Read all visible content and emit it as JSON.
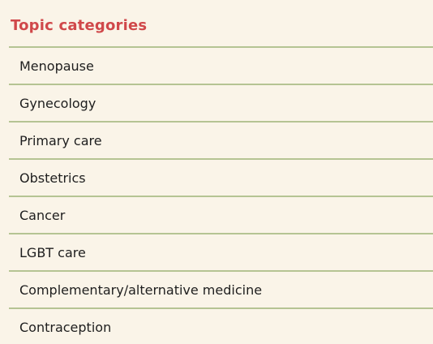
{
  "panel": {
    "title": "Topic categories"
  },
  "topics": [
    {
      "label": "Menopause"
    },
    {
      "label": "Gynecology"
    },
    {
      "label": "Primary care"
    },
    {
      "label": "Obstetrics"
    },
    {
      "label": "Cancer"
    },
    {
      "label": "LGBT care"
    },
    {
      "label": "Complementary/alternative medicine"
    },
    {
      "label": "Contraception"
    }
  ],
  "colors": {
    "background": "#faf4e8",
    "title": "#d0484a",
    "divider": "#b5c493",
    "text": "#1e1e1e"
  }
}
